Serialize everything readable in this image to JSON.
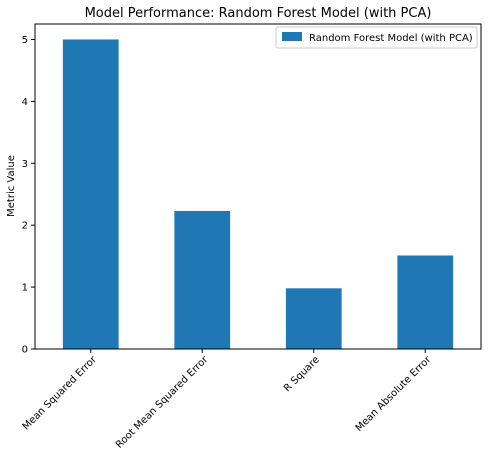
{
  "chart_data": {
    "type": "bar",
    "title": "Model Performance: Random Forest Model (with PCA)",
    "xlabel": "",
    "ylabel": "Metric Value",
    "categories": [
      "Mean Squared Error",
      "Root Mean Squared Error",
      "R Square",
      "Mean Absolute Error"
    ],
    "series": [
      {
        "name": "Random Forest Model (with PCA)",
        "values": [
          5.0,
          2.23,
          0.98,
          1.51
        ],
        "color": "#1f77b4"
      }
    ],
    "ylim": [
      0,
      5.25
    ],
    "yticks": [
      "0",
      "1",
      "2",
      "3",
      "4",
      "5"
    ],
    "grid": false,
    "legend_position": "top-right"
  }
}
